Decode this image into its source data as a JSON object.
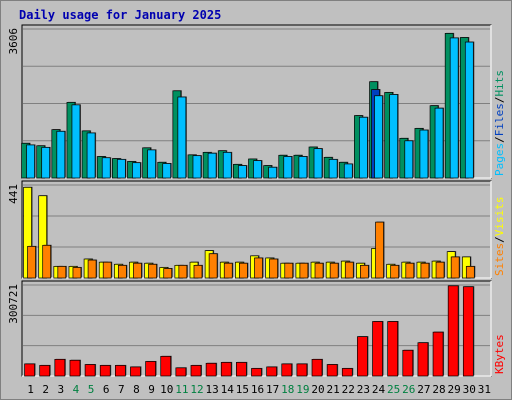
{
  "chart_data": [
    {
      "type": "bar",
      "panel": "top",
      "title": "Daily usage for January 2025",
      "categories": [
        "1",
        "2",
        "3",
        "4",
        "5",
        "6",
        "7",
        "8",
        "9",
        "10",
        "11",
        "12",
        "13",
        "14",
        "15",
        "16",
        "17",
        "18",
        "19",
        "20",
        "21",
        "22",
        "23",
        "24",
        "25",
        "26",
        "27",
        "28",
        "29",
        "30",
        "31"
      ],
      "weekend_days": [
        "4",
        "5",
        "11",
        "12",
        "18",
        "19",
        "25",
        "26"
      ],
      "ymax_label": "3606",
      "ylim": [
        0,
        3606
      ],
      "grid": true,
      "series": [
        {
          "name": "Hits",
          "color": "#009060",
          "values": [
            840,
            780,
            1170,
            1830,
            1140,
            520,
            470,
            400,
            730,
            380,
            2110,
            560,
            620,
            660,
            330,
            460,
            300,
            550,
            550,
            750,
            500,
            380,
            1510,
            2330,
            2070,
            960,
            1200,
            1750,
            3500,
            3400,
            0
          ]
        },
        {
          "name": "Files",
          "color": "#0040c0",
          "values": [
            0,
            0,
            0,
            0,
            0,
            0,
            0,
            0,
            0,
            0,
            0,
            0,
            0,
            0,
            0,
            0,
            0,
            0,
            0,
            0,
            0,
            0,
            0,
            2140,
            0,
            0,
            0,
            0,
            0,
            0,
            0
          ]
        },
        {
          "name": "Pages",
          "color": "#00bfff",
          "values": [
            800,
            740,
            1130,
            1770,
            1090,
            490,
            450,
            370,
            680,
            350,
            1960,
            540,
            600,
            620,
            300,
            420,
            260,
            520,
            520,
            710,
            450,
            340,
            1470,
            1990,
            2020,
            900,
            1160,
            1690,
            3390,
            3290,
            0
          ]
        }
      ],
      "legend": [
        "Pages",
        "/",
        "Files",
        "/",
        "Hits"
      ]
    },
    {
      "type": "bar",
      "panel": "middle",
      "ymax_label": "441",
      "ylim": [
        0,
        441
      ],
      "grid": true,
      "series": [
        {
          "name": "Visits",
          "color": "#ffff00",
          "values": [
            430,
            390,
            55,
            55,
            90,
            75,
            65,
            75,
            70,
            50,
            60,
            75,
            130,
            75,
            75,
            105,
            95,
            70,
            70,
            75,
            75,
            80,
            70,
            140,
            65,
            75,
            75,
            80,
            125,
            100,
            0
          ]
        },
        {
          "name": "Sites",
          "color": "#ff8000",
          "values": [
            150,
            155,
            55,
            50,
            85,
            75,
            60,
            70,
            65,
            45,
            60,
            60,
            115,
            70,
            70,
            95,
            90,
            70,
            70,
            70,
            70,
            75,
            60,
            265,
            60,
            70,
            70,
            75,
            100,
            55,
            0
          ]
        }
      ],
      "legend": [
        "Sites",
        "/",
        "Visits"
      ]
    },
    {
      "type": "bar",
      "panel": "bottom",
      "ymax_label": "300721",
      "ylim": [
        0,
        300721
      ],
      "grid": true,
      "series": [
        {
          "name": "KBytes",
          "color": "#ff0000",
          "values": [
            40000,
            35000,
            55000,
            52000,
            38000,
            35000,
            35000,
            30000,
            48000,
            65000,
            27000,
            35000,
            42000,
            45000,
            45000,
            25000,
            30000,
            40000,
            40000,
            55000,
            38000,
            25000,
            130000,
            180000,
            180000,
            85000,
            110000,
            145000,
            298000,
            295000,
            0
          ]
        }
      ],
      "legend": [
        "KBytes"
      ]
    }
  ],
  "colors": {
    "background": "#c0c0c0",
    "plot": "#c0c0c0",
    "grid": "#808080",
    "title": "#0000b0",
    "weekday_label": "#000000",
    "weekend_label": "#008040",
    "legend_sep": "#000000"
  }
}
